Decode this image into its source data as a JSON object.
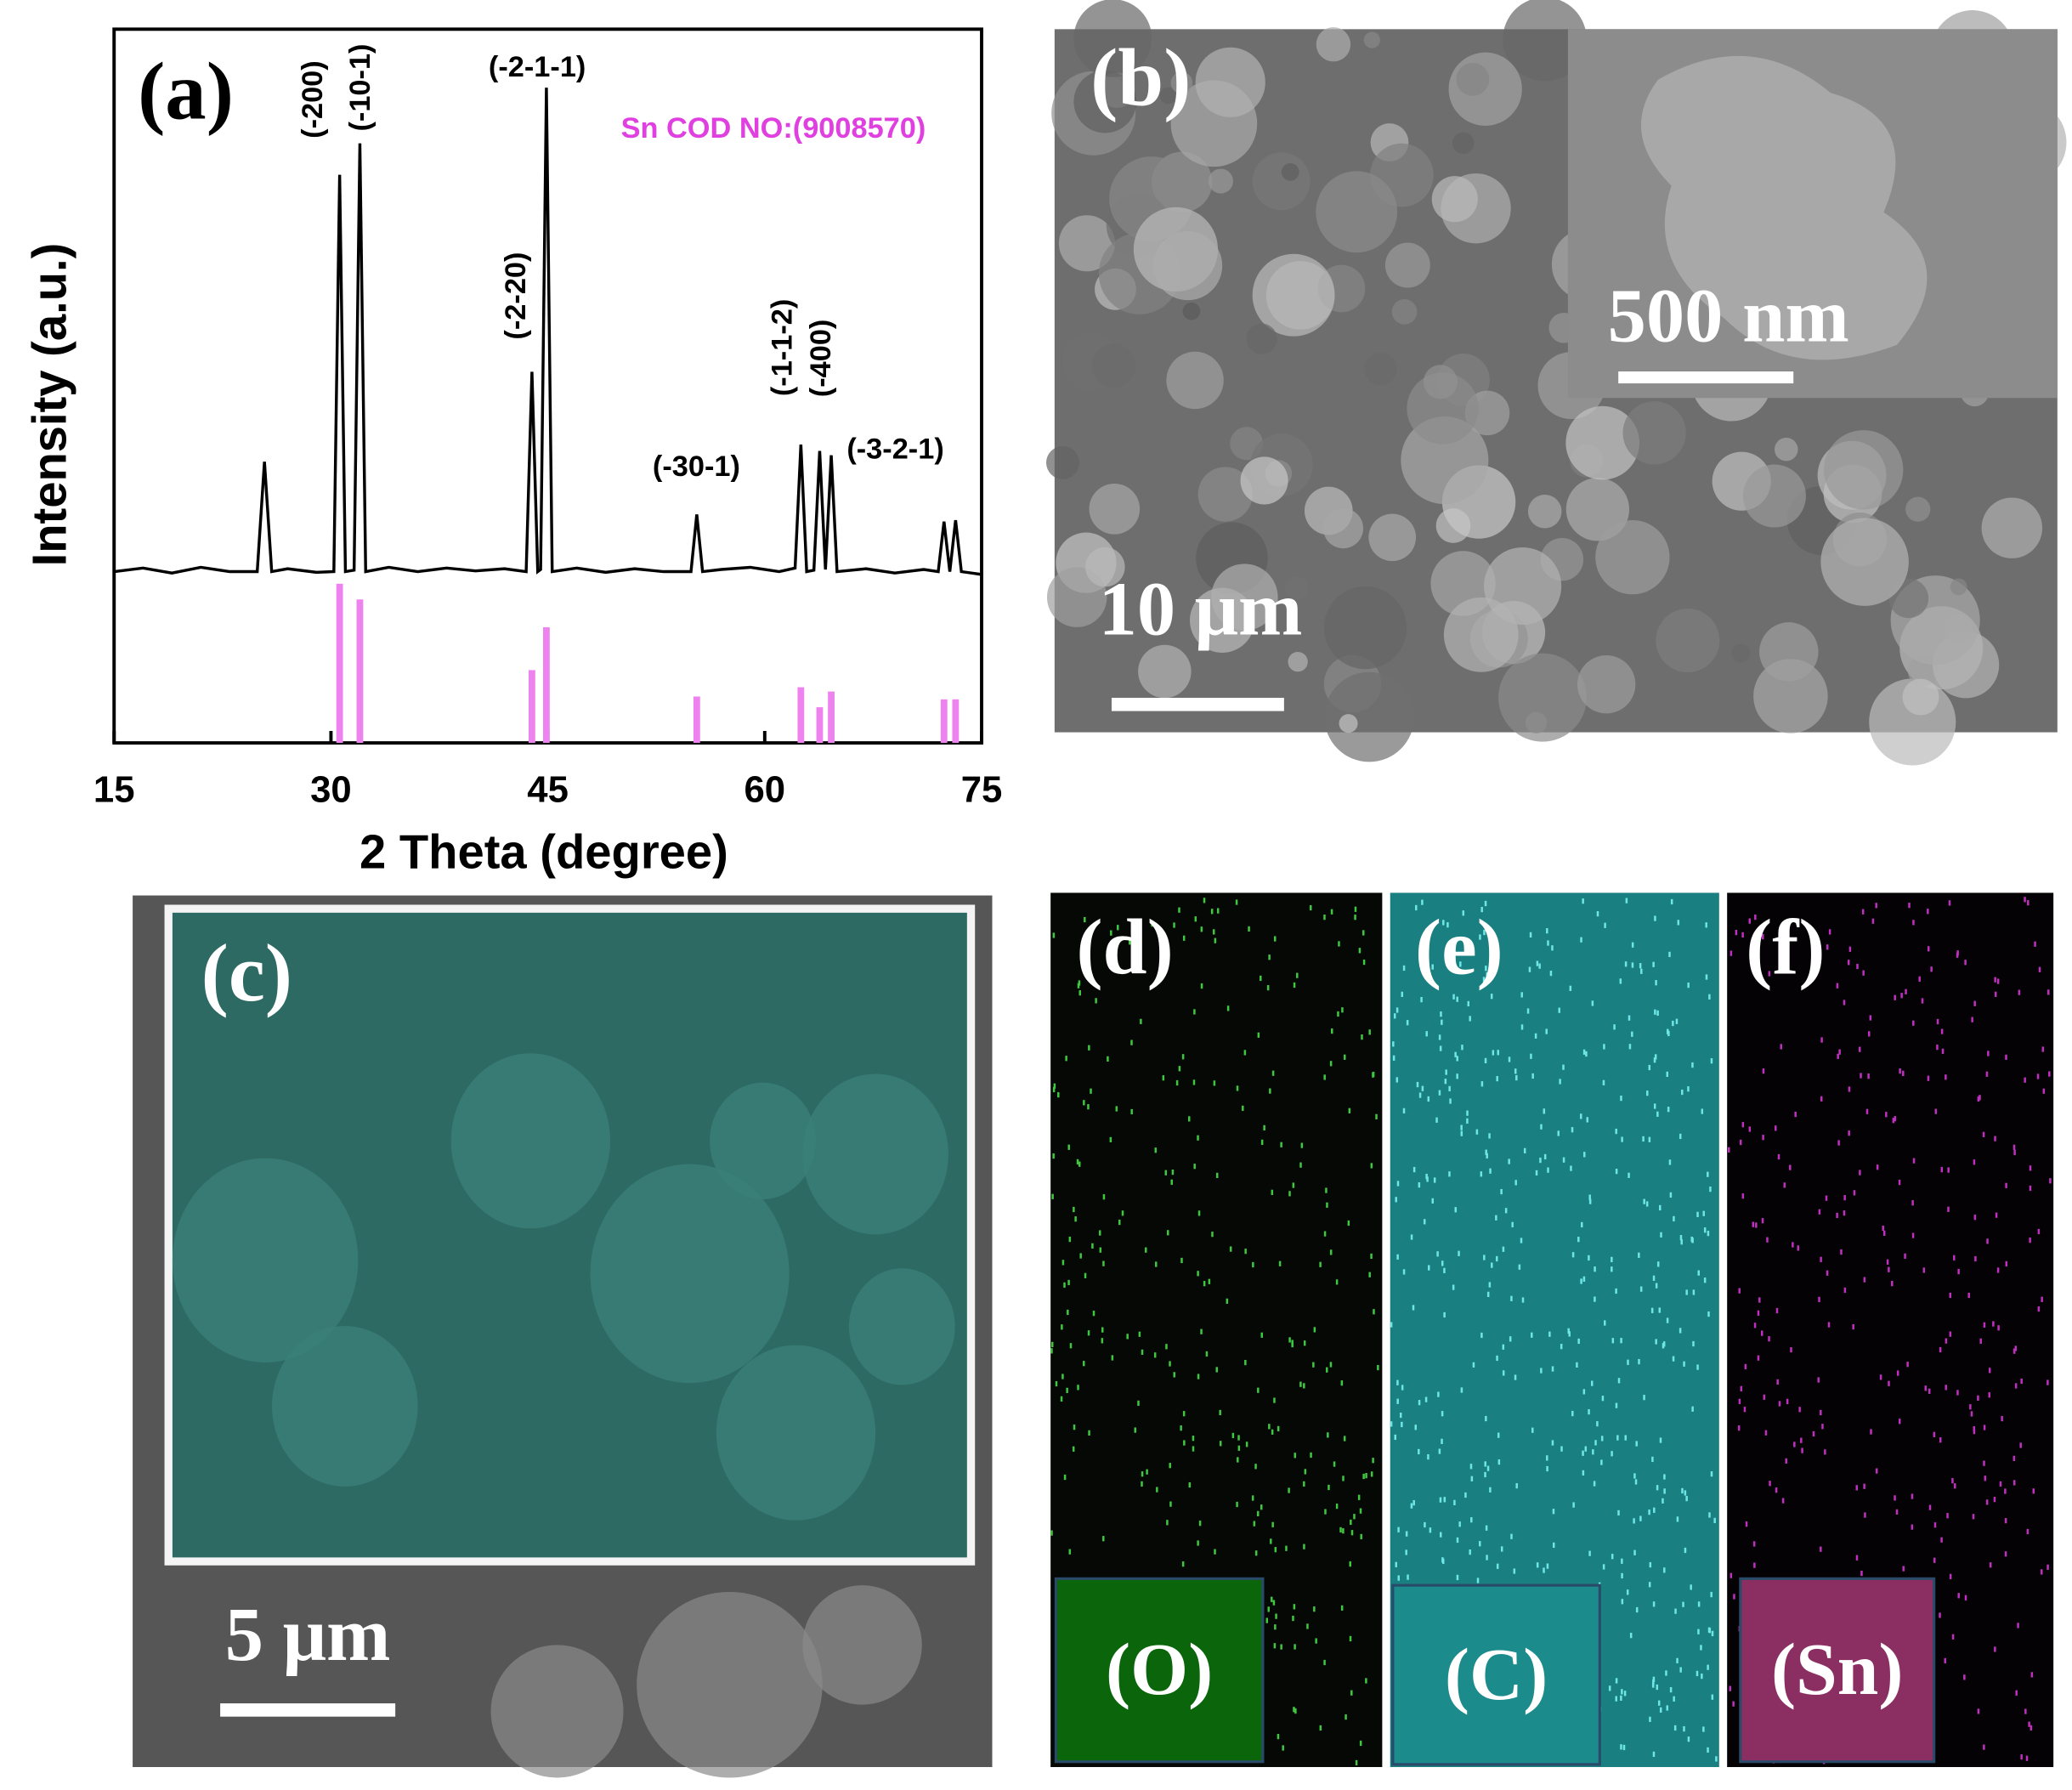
{
  "chart_data": {
    "type": "line",
    "panel_label": "(a)",
    "x_label": "2 Theta (degree)",
    "y_label": "Intensity (a.u.)",
    "xlim": [
      15,
      75
    ],
    "xticks": [
      15,
      30,
      45,
      60,
      75
    ],
    "ylim": [
      0,
      100
    ],
    "annotations": [
      "(-200)",
      "(-10-1)",
      "(-2-1-1)",
      "(-2-20)",
      "(-30-1)",
      "(-1-1-2)",
      "(-400)",
      "(-3-2-1)"
    ],
    "series": [
      {
        "type": "line",
        "color": "#000000",
        "x": [
          15,
          17,
          19,
          21,
          23,
          24.9,
          25.4,
          25.9,
          27,
          29,
          30.2,
          30.6,
          31.0,
          31.6,
          32.0,
          32.4,
          34,
          36,
          38,
          40,
          42,
          43.5,
          43.9,
          44.3,
          44.5,
          44.9,
          45.3,
          47,
          49,
          51,
          53,
          54.9,
          55.3,
          55.7,
          57,
          59,
          61,
          62.1,
          62.5,
          62.9,
          63.4,
          63.8,
          64.2,
          64.6,
          65.0,
          67,
          69,
          71,
          72.0,
          72.4,
          72.8,
          73.2,
          73.6,
          75
        ],
        "values": [
          24,
          24.5,
          23.8,
          24.6,
          24,
          24,
          39.4,
          24,
          24.4,
          23.9,
          24,
          79.6,
          24,
          24.2,
          84,
          24,
          24.6,
          24,
          24.5,
          24.1,
          24.4,
          24,
          52,
          24,
          24.3,
          91.8,
          24,
          24.5,
          23.9,
          24.4,
          24,
          24,
          32,
          24,
          24.3,
          24.6,
          24,
          24.5,
          41.8,
          24,
          24.2,
          40.9,
          24.3,
          40.3,
          24,
          24.4,
          23.8,
          24.3,
          24,
          31,
          24,
          31.2,
          24,
          23.6
        ]
      },
      {
        "type": "stem",
        "name": "Sn COD NO:(9008570)",
        "color": "#ee82ee",
        "x": [
          30.6,
          32.0,
          43.9,
          44.9,
          55.3,
          62.5,
          63.8,
          64.6,
          72.4,
          73.2
        ],
        "values": [
          22.3,
          20.1,
          10.2,
          16.2,
          6.5,
          7.8,
          5.0,
          7.2,
          6.1,
          6.1
        ]
      }
    ]
  },
  "panels": {
    "b": {
      "label": "(b)",
      "scale_bar": "10 μm",
      "inset_scale_bar": "500 nm"
    },
    "c": {
      "label": "(c)",
      "scale_bar": "5 μm"
    },
    "d": {
      "label": "(d)",
      "element": "(O)"
    },
    "e": {
      "label": "(e)",
      "element": "(C)"
    },
    "f": {
      "label": "(f)",
      "element": "(Sn)"
    }
  }
}
